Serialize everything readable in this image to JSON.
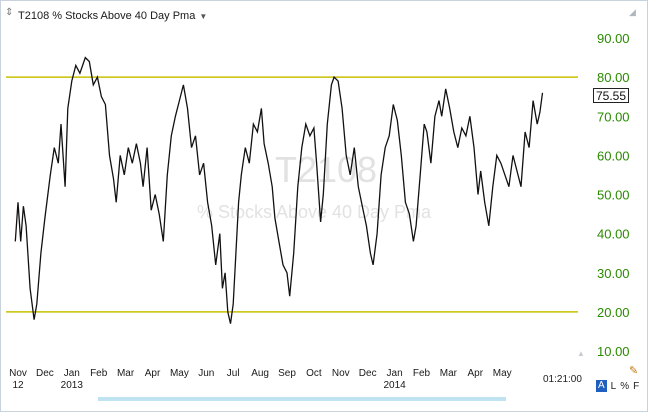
{
  "header": {
    "title": "T2108 % Stocks Above 40 Day Pma",
    "drag_icon": "drag-handle-icon",
    "dropdown_icon": "chevron-down-icon"
  },
  "watermark": {
    "symbol": "T2108",
    "name": "% Stocks Above 40 Day Pma"
  },
  "last_value": "75.55",
  "time_label": "01:21:00",
  "scale_buttons": {
    "a": "A",
    "l": "L",
    "pct": "%",
    "f": "F"
  },
  "colors": {
    "line": "#111111",
    "reference": "#c8c000",
    "axis_text": "#2a8a00",
    "scale_active": "#1f5fbf"
  },
  "chart_data": {
    "type": "line",
    "y_ticks": [
      "10.00",
      "20.00",
      "30.00",
      "40.00",
      "50.00",
      "60.00",
      "70.00",
      "80.00",
      "90.00"
    ],
    "ylim": [
      8,
      95
    ],
    "x_ticks": [
      {
        "label": "Nov",
        "sub": "12",
        "m": 0
      },
      {
        "label": "Dec",
        "m": 1
      },
      {
        "label": "Jan",
        "sub": "2013",
        "m": 2
      },
      {
        "label": "Feb",
        "m": 3
      },
      {
        "label": "Mar",
        "m": 4
      },
      {
        "label": "Apr",
        "m": 5
      },
      {
        "label": "May",
        "m": 6
      },
      {
        "label": "Jun",
        "m": 7
      },
      {
        "label": "Jul",
        "m": 8
      },
      {
        "label": "Aug",
        "m": 9
      },
      {
        "label": "Sep",
        "m": 10
      },
      {
        "label": "Oct",
        "m": 11
      },
      {
        "label": "Nov",
        "m": 12
      },
      {
        "label": "Dec",
        "m": 13
      },
      {
        "label": "Jan",
        "sub": "2014",
        "m": 14
      },
      {
        "label": "Feb",
        "m": 15
      },
      {
        "label": "Mar",
        "m": 16
      },
      {
        "label": "Apr",
        "m": 17
      },
      {
        "label": "May",
        "m": 18
      }
    ],
    "reference_lines": [
      80,
      20
    ],
    "grid": false,
    "series": [
      {
        "points": [
          [
            -0.1,
            38
          ],
          [
            0.0,
            48
          ],
          [
            0.1,
            38
          ],
          [
            0.2,
            47
          ],
          [
            0.3,
            42
          ],
          [
            0.45,
            26
          ],
          [
            0.6,
            18
          ],
          [
            0.7,
            22
          ],
          [
            0.85,
            35
          ],
          [
            1.0,
            44
          ],
          [
            1.2,
            55
          ],
          [
            1.35,
            62
          ],
          [
            1.5,
            58
          ],
          [
            1.6,
            68
          ],
          [
            1.75,
            52
          ],
          [
            1.85,
            72
          ],
          [
            2.0,
            79
          ],
          [
            2.15,
            83
          ],
          [
            2.3,
            81
          ],
          [
            2.5,
            85
          ],
          [
            2.65,
            84
          ],
          [
            2.8,
            78
          ],
          [
            2.95,
            80
          ],
          [
            3.1,
            75
          ],
          [
            3.25,
            73
          ],
          [
            3.4,
            60
          ],
          [
            3.55,
            54
          ],
          [
            3.65,
            48
          ],
          [
            3.8,
            60
          ],
          [
            3.95,
            55
          ],
          [
            4.1,
            62
          ],
          [
            4.25,
            58
          ],
          [
            4.4,
            63
          ],
          [
            4.55,
            58
          ],
          [
            4.65,
            52
          ],
          [
            4.8,
            62
          ],
          [
            4.95,
            46
          ],
          [
            5.1,
            50
          ],
          [
            5.25,
            45
          ],
          [
            5.4,
            38
          ],
          [
            5.55,
            55
          ],
          [
            5.7,
            65
          ],
          [
            5.85,
            70
          ],
          [
            6.0,
            74
          ],
          [
            6.15,
            78
          ],
          [
            6.3,
            72
          ],
          [
            6.45,
            62
          ],
          [
            6.6,
            65
          ],
          [
            6.75,
            55
          ],
          [
            6.9,
            58
          ],
          [
            7.05,
            48
          ],
          [
            7.2,
            42
          ],
          [
            7.35,
            32
          ],
          [
            7.5,
            40
          ],
          [
            7.6,
            26
          ],
          [
            7.7,
            30
          ],
          [
            7.8,
            20
          ],
          [
            7.9,
            17
          ],
          [
            8.0,
            22
          ],
          [
            8.1,
            35
          ],
          [
            8.2,
            48
          ],
          [
            8.3,
            55
          ],
          [
            8.45,
            62
          ],
          [
            8.6,
            58
          ],
          [
            8.75,
            68
          ],
          [
            8.9,
            66
          ],
          [
            9.05,
            72
          ],
          [
            9.15,
            63
          ],
          [
            9.3,
            58
          ],
          [
            9.45,
            52
          ],
          [
            9.55,
            44
          ],
          [
            9.7,
            38
          ],
          [
            9.85,
            32
          ],
          [
            10.0,
            30
          ],
          [
            10.1,
            24
          ],
          [
            10.25,
            35
          ],
          [
            10.4,
            52
          ],
          [
            10.55,
            62
          ],
          [
            10.7,
            68
          ],
          [
            10.85,
            65
          ],
          [
            11.0,
            67
          ],
          [
            11.1,
            58
          ],
          [
            11.25,
            43
          ],
          [
            11.35,
            50
          ],
          [
            11.5,
            68
          ],
          [
            11.65,
            78
          ],
          [
            11.75,
            80
          ],
          [
            11.9,
            79
          ],
          [
            12.05,
            72
          ],
          [
            12.2,
            60
          ],
          [
            12.35,
            55
          ],
          [
            12.5,
            62
          ],
          [
            12.65,
            52
          ],
          [
            12.8,
            47
          ],
          [
            12.95,
            42
          ],
          [
            13.1,
            35
          ],
          [
            13.2,
            32
          ],
          [
            13.35,
            40
          ],
          [
            13.5,
            55
          ],
          [
            13.65,
            62
          ],
          [
            13.8,
            65
          ],
          [
            13.95,
            73
          ],
          [
            14.1,
            69
          ],
          [
            14.25,
            60
          ],
          [
            14.4,
            48
          ],
          [
            14.55,
            45
          ],
          [
            14.7,
            38
          ],
          [
            14.8,
            42
          ],
          [
            14.95,
            55
          ],
          [
            15.1,
            68
          ],
          [
            15.2,
            66
          ],
          [
            15.35,
            58
          ],
          [
            15.5,
            70
          ],
          [
            15.65,
            74
          ],
          [
            15.75,
            70
          ],
          [
            15.9,
            77
          ],
          [
            16.05,
            72
          ],
          [
            16.2,
            66
          ],
          [
            16.35,
            62
          ],
          [
            16.5,
            67
          ],
          [
            16.65,
            65
          ],
          [
            16.8,
            70
          ],
          [
            16.95,
            62
          ],
          [
            17.1,
            50
          ],
          [
            17.2,
            56
          ],
          [
            17.35,
            48
          ],
          [
            17.5,
            42
          ],
          [
            17.65,
            52
          ],
          [
            17.8,
            60
          ],
          [
            17.95,
            58
          ],
          [
            18.1,
            55
          ],
          [
            18.25,
            52
          ],
          [
            18.4,
            60
          ],
          [
            18.55,
            56
          ],
          [
            18.7,
            52
          ],
          [
            18.85,
            66
          ],
          [
            19.0,
            62
          ],
          [
            19.15,
            74
          ],
          [
            19.3,
            68
          ],
          [
            19.4,
            71
          ],
          [
            19.5,
            76
          ]
        ]
      }
    ]
  }
}
